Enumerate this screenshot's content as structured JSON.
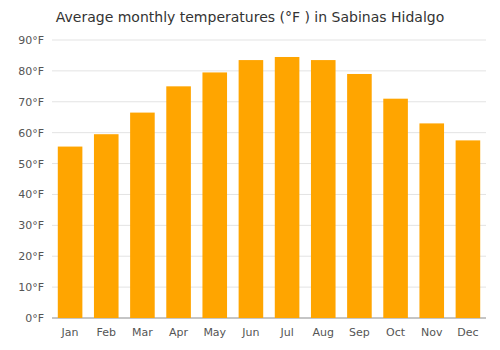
{
  "chart_data": {
    "type": "bar",
    "title": "Average monthly temperatures (°F ) in Sabinas Hidalgo",
    "categories": [
      "Jan",
      "Feb",
      "Mar",
      "Apr",
      "May",
      "Jun",
      "Jul",
      "Aug",
      "Sep",
      "Oct",
      "Nov",
      "Dec"
    ],
    "values": [
      55.5,
      59.5,
      66.5,
      75.0,
      79.5,
      83.5,
      84.5,
      83.5,
      79.0,
      71.0,
      63.0,
      57.5
    ],
    "color": "#FFA500",
    "ylim": [
      0,
      90
    ],
    "yticks": [
      {
        "value": 0,
        "label": "0°F"
      },
      {
        "value": 10,
        "label": "10°F"
      },
      {
        "value": 20,
        "label": "20°F"
      },
      {
        "value": 30,
        "label": "30°F"
      },
      {
        "value": 40,
        "label": "40°F"
      },
      {
        "value": 50,
        "label": "50°F"
      },
      {
        "value": 60,
        "label": "60°F"
      },
      {
        "value": 70,
        "label": "70°F"
      },
      {
        "value": 80,
        "label": "80°F"
      },
      {
        "value": 90,
        "label": "90°F"
      }
    ],
    "grid": true
  }
}
